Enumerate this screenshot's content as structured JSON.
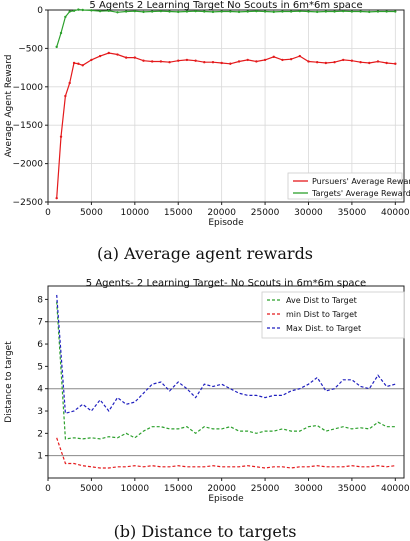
{
  "chart_data": [
    {
      "type": "line",
      "title": "5 Agents  2 Learning Target  No Scouts in 6m*6m space",
      "xlabel": "Episode",
      "ylabel": "Average Agent Reward",
      "xlim": [
        0,
        41000
      ],
      "ylim": [
        -2500,
        0
      ],
      "xticks": [
        0,
        5000,
        10000,
        15000,
        20000,
        25000,
        30000,
        35000,
        40000
      ],
      "yticks": [
        0,
        -500,
        -1000,
        -1500,
        -2000,
        -2500
      ],
      "grid": true,
      "legend_position": "lower-right",
      "series": [
        {
          "name": "Pursuers' Average Reward",
          "color": "#e41a1c",
          "x": [
            1000,
            1500,
            2000,
            2500,
            3000,
            3500,
            4000,
            5000,
            6000,
            7000,
            8000,
            9000,
            10000,
            11000,
            12000,
            13000,
            14000,
            15000,
            16000,
            17000,
            18000,
            19000,
            20000,
            21000,
            22000,
            23000,
            24000,
            25000,
            26000,
            27000,
            28000,
            29000,
            30000,
            31000,
            32000,
            33000,
            34000,
            35000,
            36000,
            37000,
            38000,
            39000,
            40000
          ],
          "y": [
            -2450,
            -1650,
            -1120,
            -950,
            -690,
            -700,
            -720,
            -650,
            -600,
            -560,
            -580,
            -620,
            -620,
            -660,
            -670,
            -670,
            -680,
            -660,
            -650,
            -660,
            -680,
            -680,
            -690,
            -700,
            -670,
            -650,
            -670,
            -650,
            -610,
            -650,
            -640,
            -600,
            -670,
            -680,
            -690,
            -680,
            -650,
            -660,
            -680,
            -690,
            -670,
            -690,
            -700
          ]
        },
        {
          "name": "Targets' Average Reward",
          "color": "#2ca02c",
          "x": [
            1000,
            1500,
            2000,
            2500,
            3000,
            3500,
            4000,
            5000,
            6000,
            7000,
            8000,
            9000,
            10000,
            11000,
            12000,
            13000,
            14000,
            15000,
            16000,
            17000,
            18000,
            19000,
            20000,
            21000,
            22000,
            23000,
            24000,
            25000,
            26000,
            27000,
            28000,
            29000,
            30000,
            31000,
            32000,
            33000,
            34000,
            35000,
            36000,
            37000,
            38000,
            39000,
            40000
          ],
          "y": [
            -480,
            -300,
            -90,
            -20,
            -10,
            5,
            0,
            -5,
            -15,
            -10,
            -30,
            -20,
            -15,
            -25,
            -20,
            -15,
            -20,
            -25,
            -20,
            -15,
            -20,
            -25,
            -20,
            -20,
            -25,
            -20,
            -15,
            -20,
            -25,
            -20,
            -20,
            -15,
            -20,
            -25,
            -20,
            -20,
            -15,
            -20,
            -20,
            -25,
            -20,
            -20,
            -20
          ]
        }
      ]
    },
    {
      "type": "line",
      "title": "5 Agents- 2 Learning Target- No Scouts in 6m*6m space",
      "xlabel": "Episode",
      "ylabel": "Distance to target",
      "xlim": [
        0,
        41000
      ],
      "ylim": [
        0,
        8.6
      ],
      "xticks": [
        0,
        5000,
        10000,
        15000,
        20000,
        25000,
        30000,
        35000,
        40000
      ],
      "yticks": [
        1,
        2,
        3,
        4,
        5,
        6,
        7,
        8
      ],
      "grid": false,
      "reference_lines": [
        1,
        4,
        7
      ],
      "legend_position": "upper-right",
      "series": [
        {
          "name": "Ave Dist to Target",
          "color": "#2ca02c",
          "x": [
            1000,
            2000,
            3000,
            4000,
            5000,
            6000,
            7000,
            8000,
            9000,
            10000,
            11000,
            12000,
            13000,
            14000,
            15000,
            16000,
            17000,
            18000,
            19000,
            20000,
            21000,
            22000,
            23000,
            24000,
            25000,
            26000,
            27000,
            28000,
            29000,
            30000,
            31000,
            32000,
            33000,
            34000,
            35000,
            36000,
            37000,
            38000,
            39000,
            40000
          ],
          "y": [
            7.9,
            1.75,
            1.8,
            1.75,
            1.8,
            1.75,
            1.85,
            1.8,
            2.0,
            1.8,
            2.1,
            2.3,
            2.3,
            2.2,
            2.2,
            2.3,
            2.0,
            2.3,
            2.2,
            2.2,
            2.3,
            2.1,
            2.1,
            2.0,
            2.1,
            2.1,
            2.2,
            2.1,
            2.1,
            2.3,
            2.35,
            2.1,
            2.2,
            2.3,
            2.2,
            2.25,
            2.2,
            2.5,
            2.3,
            2.3
          ]
        },
        {
          "name": "min Dist to Target",
          "color": "#e41a1c",
          "x": [
            1000,
            2000,
            3000,
            4000,
            5000,
            6000,
            7000,
            8000,
            9000,
            10000,
            11000,
            12000,
            13000,
            14000,
            15000,
            16000,
            17000,
            18000,
            19000,
            20000,
            21000,
            22000,
            23000,
            24000,
            25000,
            26000,
            27000,
            28000,
            29000,
            30000,
            31000,
            32000,
            33000,
            34000,
            35000,
            36000,
            37000,
            38000,
            39000,
            40000
          ],
          "y": [
            1.8,
            0.65,
            0.65,
            0.55,
            0.5,
            0.45,
            0.45,
            0.5,
            0.5,
            0.55,
            0.5,
            0.55,
            0.5,
            0.5,
            0.55,
            0.5,
            0.5,
            0.5,
            0.55,
            0.5,
            0.5,
            0.5,
            0.55,
            0.5,
            0.45,
            0.5,
            0.5,
            0.45,
            0.5,
            0.5,
            0.55,
            0.5,
            0.5,
            0.5,
            0.55,
            0.5,
            0.5,
            0.55,
            0.5,
            0.55
          ]
        },
        {
          "name": "Max Dist. to Target",
          "color": "#1f1fbf",
          "x": [
            1000,
            2000,
            3000,
            4000,
            5000,
            6000,
            7000,
            8000,
            9000,
            10000,
            11000,
            12000,
            13000,
            14000,
            15000,
            16000,
            17000,
            18000,
            19000,
            20000,
            21000,
            22000,
            23000,
            24000,
            25000,
            26000,
            27000,
            28000,
            29000,
            30000,
            31000,
            32000,
            33000,
            34000,
            35000,
            36000,
            37000,
            38000,
            39000,
            40000
          ],
          "y": [
            8.2,
            2.9,
            3.0,
            3.3,
            3.0,
            3.5,
            3.0,
            3.6,
            3.3,
            3.4,
            3.8,
            4.2,
            4.3,
            3.9,
            4.3,
            4.0,
            3.6,
            4.2,
            4.1,
            4.2,
            4.0,
            3.8,
            3.7,
            3.7,
            3.6,
            3.7,
            3.7,
            3.9,
            4.0,
            4.2,
            4.5,
            3.9,
            4.0,
            4.4,
            4.4,
            4.1,
            4.0,
            4.6,
            4.1,
            4.2
          ]
        }
      ]
    }
  ],
  "captions": {
    "a": "(a) Average agent rewards",
    "b": "(b) Distance to targets"
  }
}
